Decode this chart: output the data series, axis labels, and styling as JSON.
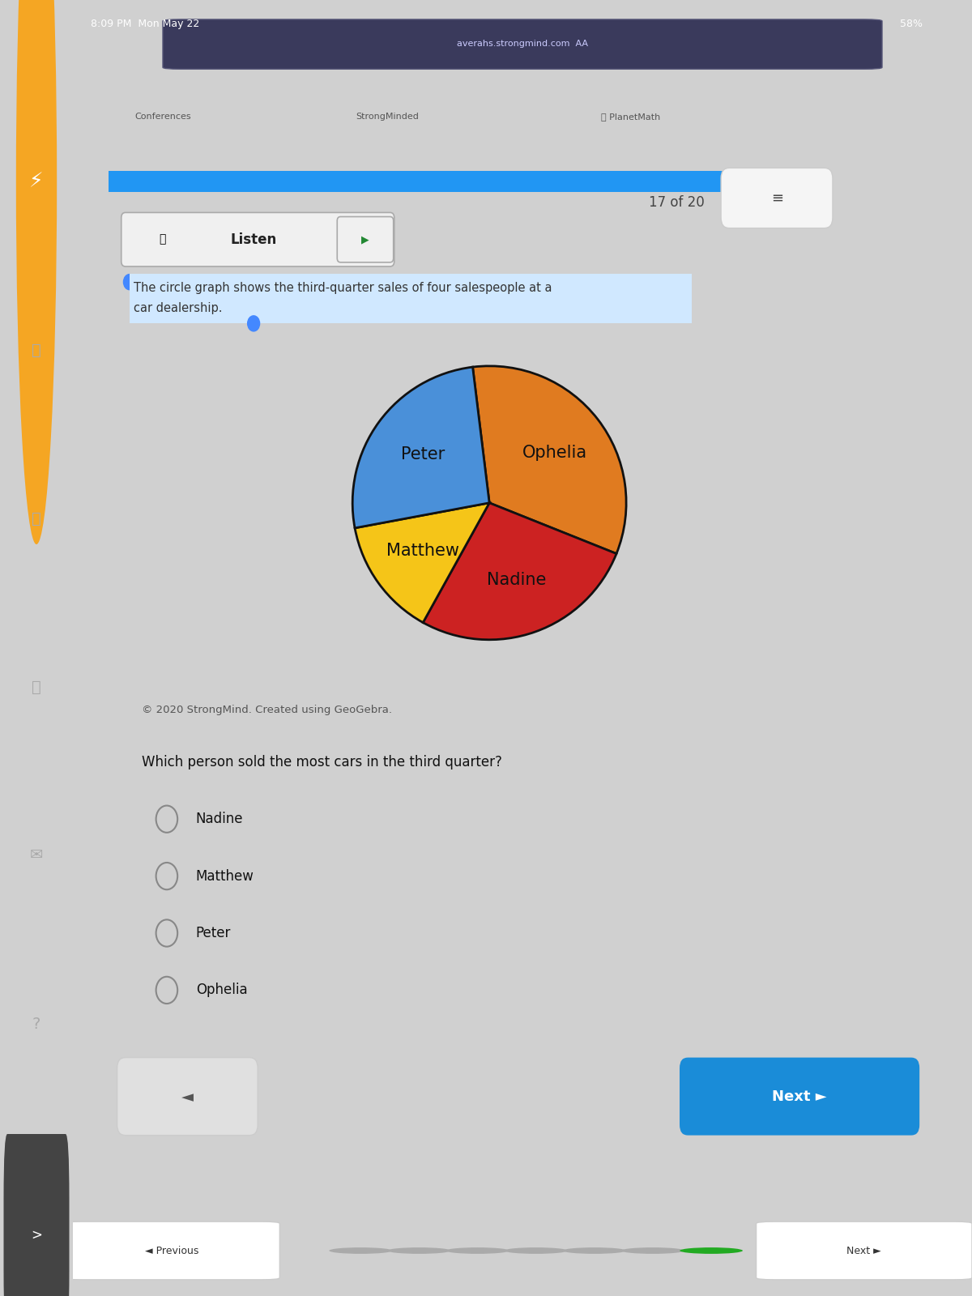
{
  "pie_labels": [
    "Ophelia",
    "Nadine",
    "Matthew",
    "Peter"
  ],
  "pie_sizes": [
    33,
    27,
    14,
    26
  ],
  "pie_colors": [
    "#E07B20",
    "#CC2222",
    "#F5C518",
    "#4A90D9"
  ],
  "pie_startangle": 97,
  "pie_edgecolor": "#111111",
  "pie_linewidth": 2.0,
  "label_fontsize": 15,
  "label_color": "#111111",
  "description": "The circle graph shows the third-quarter sales of four salespeople at a car dealership.",
  "copyright_text": "© 2020 StrongMind. Created using GeoGebra.",
  "question_text": "Which person sold the most cars in the third quarter?",
  "choices": [
    "Nadine",
    "Matthew",
    "Peter",
    "Ophelia"
  ],
  "page_info": "17 of 20",
  "bg_color": "#ffffff",
  "card_bg": "#f5f5f5",
  "outer_bg": "#d0d0d0",
  "sidebar_color": "#2a2a2a",
  "header_bg": "#1c1c2e",
  "tab_bar_bg": "#e8e8e8",
  "listen_btn_bg": "#f0f0f0",
  "listen_btn_border": "#aaaaaa",
  "highlight_color": "#d0e8ff",
  "progress_bar_color": "#2196F3",
  "next_button_color": "#1a8cd8",
  "prev_button_bg": "#e0e0e0",
  "radio_color": "#888888",
  "sidebar_icon_color": "#f0a020",
  "fig_width": 12.0,
  "fig_height": 16.0,
  "dpi": 100
}
